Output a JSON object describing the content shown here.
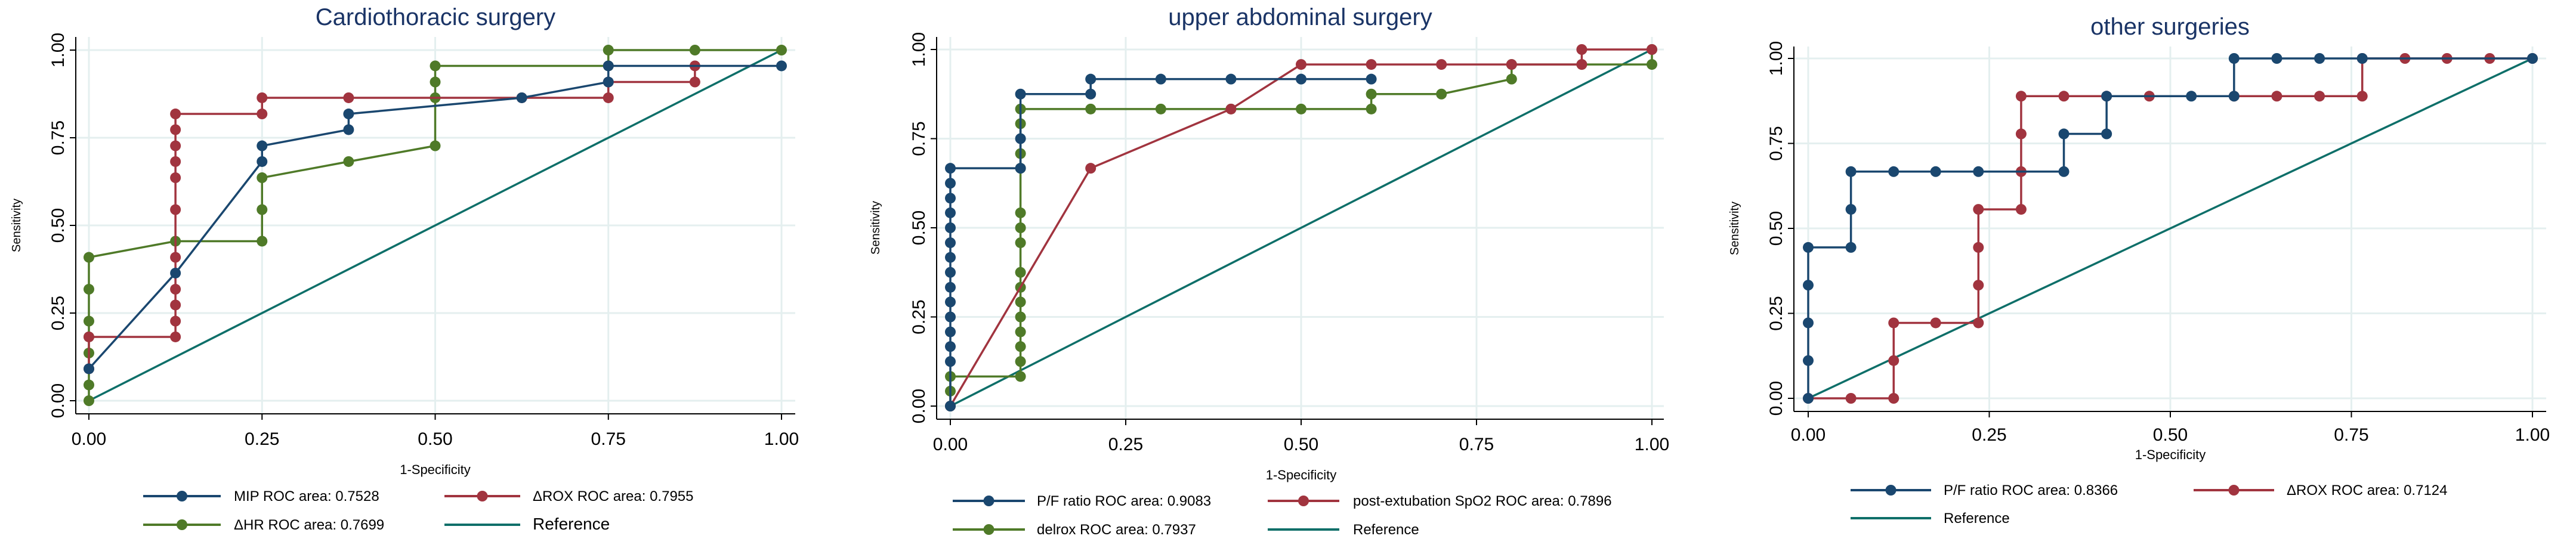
{
  "colors": {
    "navy": "#1a476f",
    "maroon": "#a1343f",
    "green": "#4f7a28",
    "teal": "#0e6f69",
    "grid": "#e4efef",
    "title": "#1a3466"
  },
  "chart_data": [
    {
      "type": "line",
      "title": "Cardiothoracic surgery",
      "xlabel": "1-Specificity",
      "ylabel": "Sensitivity",
      "xlim": [
        0,
        1
      ],
      "ylim": [
        0,
        1
      ],
      "xticks": [
        "0.00",
        "0.25",
        "0.50",
        "0.75",
        "1.00"
      ],
      "yticks": [
        "0.00",
        "0.25",
        "0.50",
        "0.75",
        "1.00"
      ],
      "grid": true,
      "legend_position": "bottom",
      "series": [
        {
          "name": "MIP ROC area: 0.7528",
          "color": "navy",
          "markers": true,
          "x": [
            0,
            0.125,
            0.25,
            0.25,
            0.375,
            0.375,
            0.625,
            0.75,
            0.75,
            1
          ],
          "y": [
            0.091,
            0.364,
            0.682,
            0.727,
            0.773,
            0.818,
            0.864,
            0.909,
            0.955,
            0.955
          ]
        },
        {
          "name": "ΔROX ROC area: 0.7955",
          "color": "maroon",
          "markers": true,
          "x": [
            0,
            0,
            0.125,
            0.125,
            0.125,
            0.125,
            0.125,
            0.125,
            0.125,
            0.125,
            0.125,
            0.125,
            0.125,
            0.25,
            0.25,
            0.375,
            0.625,
            0.75,
            0.75,
            0.875,
            0.875
          ],
          "y": [
            0.091,
            0.182,
            0.182,
            0.227,
            0.273,
            0.318,
            0.409,
            0.545,
            0.636,
            0.682,
            0.727,
            0.773,
            0.818,
            0.818,
            0.864,
            0.864,
            0.864,
            0.864,
            0.909,
            0.909,
            0.955
          ]
        },
        {
          "name": "ΔHR ROC area: 0.7699",
          "color": "green",
          "markers": true,
          "x": [
            0,
            0,
            0,
            0,
            0,
            0,
            0,
            0.125,
            0.25,
            0.25,
            0.25,
            0.375,
            0.5,
            0.5,
            0.5,
            0.5,
            0.75,
            0.75,
            0.875,
            1
          ],
          "y": [
            0,
            0.045,
            0.136,
            0.182,
            0.227,
            0.318,
            0.409,
            0.455,
            0.455,
            0.545,
            0.636,
            0.682,
            0.727,
            0.864,
            0.909,
            0.955,
            0.955,
            1,
            1,
            1
          ]
        },
        {
          "name": "Reference",
          "color": "teal",
          "markers": false,
          "x": [
            0,
            1
          ],
          "y": [
            0,
            1
          ]
        }
      ]
    },
    {
      "type": "line",
      "title": "upper abdominal surgery",
      "xlabel": "1-Specificity",
      "ylabel": "Sensitivity",
      "xlim": [
        0,
        1
      ],
      "ylim": [
        0,
        1
      ],
      "xticks": [
        "0.00",
        "0.25",
        "0.50",
        "0.75",
        "1.00"
      ],
      "yticks": [
        "0.00",
        "0.25",
        "0.50",
        "0.75",
        "1.00"
      ],
      "grid": true,
      "legend_position": "bottom",
      "series": [
        {
          "name": "P/F ratio ROC area: 0.9083",
          "color": "navy",
          "markers": true,
          "x": [
            0,
            0,
            0,
            0,
            0,
            0,
            0,
            0,
            0,
            0,
            0,
            0,
            0,
            0,
            0,
            0.1,
            0.1,
            0.1,
            0.2,
            0.2,
            0.3,
            0.4,
            0.5,
            0.6
          ],
          "y": [
            0,
            0.125,
            0.167,
            0.208,
            0.25,
            0.292,
            0.333,
            0.375,
            0.417,
            0.458,
            0.5,
            0.542,
            0.583,
            0.625,
            0.667,
            0.667,
            0.75,
            0.875,
            0.875,
            0.917,
            0.917,
            0.917,
            0.917,
            0.917
          ]
        },
        {
          "name": "post-extubation SpO2 ROC area: 0.7896",
          "color": "maroon",
          "markers": true,
          "x": [
            0,
            0.2,
            0.4,
            0.5,
            0.6,
            0.7,
            0.8,
            0.9,
            0.9,
            1
          ],
          "y": [
            0,
            0.667,
            0.833,
            0.958,
            0.958,
            0.958,
            0.958,
            0.958,
            1,
            1
          ]
        },
        {
          "name": "delrox ROC area: 0.7937",
          "color": "green",
          "markers": true,
          "x": [
            0,
            0,
            0,
            0.1,
            0.1,
            0.1,
            0.1,
            0.1,
            0.1,
            0.1,
            0.1,
            0.1,
            0.1,
            0.1,
            0.1,
            0.1,
            0.1,
            0.1,
            0.2,
            0.3,
            0.4,
            0.5,
            0.6,
            0.6,
            0.7,
            0.8,
            0.8,
            0.9,
            1,
            1
          ],
          "y": [
            0,
            0.042,
            0.083,
            0.083,
            0.125,
            0.167,
            0.208,
            0.25,
            0.292,
            0.333,
            0.375,
            0.458,
            0.5,
            0.542,
            0.667,
            0.708,
            0.792,
            0.833,
            0.833,
            0.833,
            0.833,
            0.833,
            0.833,
            0.875,
            0.875,
            0.917,
            0.958,
            0.958,
            0.958,
            1
          ]
        },
        {
          "name": "Reference",
          "color": "teal",
          "markers": false,
          "x": [
            0,
            1
          ],
          "y": [
            0,
            1
          ]
        }
      ]
    },
    {
      "type": "line",
      "title": "other surgeries",
      "xlabel": "1-Specificity",
      "ylabel": "Sensitivity",
      "xlim": [
        0,
        1
      ],
      "ylim": [
        0,
        1
      ],
      "xticks": [
        "0.00",
        "0.25",
        "0.50",
        "0.75",
        "1.00"
      ],
      "yticks": [
        "0.00",
        "0.25",
        "0.50",
        "0.75",
        "1.00"
      ],
      "grid": true,
      "legend_position": "bottom",
      "series": [
        {
          "name": "P/F ratio ROC area: 0.8366",
          "color": "navy",
          "markers": true,
          "x": [
            0,
            0,
            0,
            0,
            0,
            0.059,
            0.059,
            0.059,
            0.118,
            0.176,
            0.235,
            0.353,
            0.353,
            0.412,
            0.412,
            0.529,
            0.588,
            0.588,
            0.647,
            0.706,
            0.765,
            1
          ],
          "y": [
            0,
            0.111,
            0.222,
            0.333,
            0.444,
            0.444,
            0.556,
            0.667,
            0.667,
            0.667,
            0.667,
            0.667,
            0.778,
            0.778,
            0.889,
            0.889,
            0.889,
            1,
            1,
            1,
            1,
            1
          ]
        },
        {
          "name": "ΔROX ROC area: 0.7124",
          "color": "maroon",
          "markers": true,
          "x": [
            0,
            0.059,
            0.118,
            0.118,
            0.118,
            0.176,
            0.235,
            0.235,
            0.235,
            0.235,
            0.294,
            0.294,
            0.294,
            0.294,
            0.353,
            0.412,
            0.471,
            0.588,
            0.647,
            0.706,
            0.765,
            0.765,
            0.824,
            0.882,
            0.941,
            1
          ],
          "y": [
            0,
            0,
            0,
            0.111,
            0.222,
            0.222,
            0.222,
            0.333,
            0.444,
            0.556,
            0.556,
            0.667,
            0.778,
            0.889,
            0.889,
            0.889,
            0.889,
            0.889,
            0.889,
            0.889,
            0.889,
            1,
            1,
            1,
            1,
            1
          ]
        },
        {
          "name": "Reference",
          "color": "teal",
          "markers": false,
          "x": [
            0,
            1
          ],
          "y": [
            0,
            1
          ]
        }
      ]
    }
  ]
}
